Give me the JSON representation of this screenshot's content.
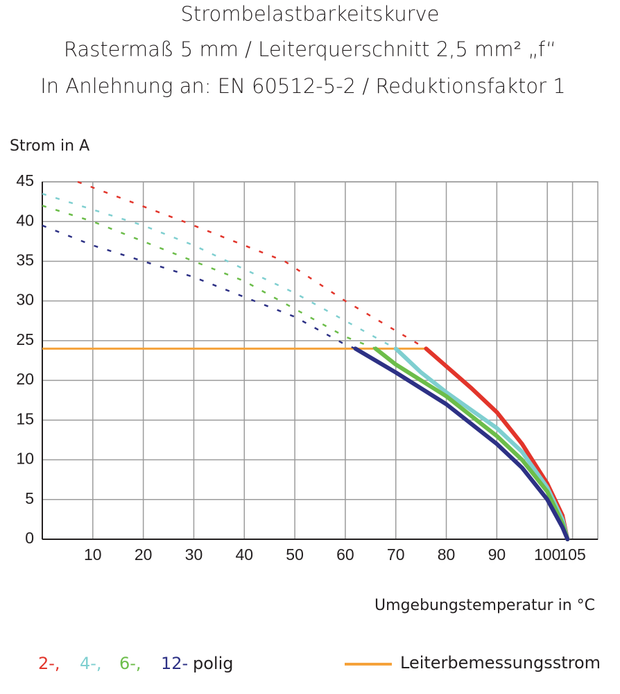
{
  "chart_data": {
    "type": "line",
    "title": "Strombelastbarkeitskurve",
    "subtitle": [
      "Rastermaß 5 mm / Leiterquerschnitt 2,5 mm² „f“",
      "In Anlehnung an: EN 60512-5-2 / Reduktionsfaktor 1"
    ],
    "y_label": "Strom in A",
    "x_label": "Umgebungstemperatur in °C",
    "legend_suffix": "polig",
    "xlim": [
      0,
      110
    ],
    "xticks": [
      10,
      20,
      30,
      40,
      50,
      60,
      70,
      80,
      90,
      100,
      105
    ],
    "ylim": [
      0,
      45
    ],
    "yticks": [
      0,
      5,
      10,
      15,
      20,
      25,
      30,
      35,
      40,
      45
    ],
    "grid": true,
    "series": [
      {
        "name": "2-,",
        "color": "#e2352b",
        "x": [
          7,
          28,
          48,
          60,
          76,
          85,
          90,
          95,
          100,
          103,
          104
        ],
        "values": [
          45,
          40,
          35,
          30,
          24,
          19,
          16,
          12,
          7,
          3,
          0
        ]
      },
      {
        "name": "4-,",
        "color": "#7fcfd0",
        "x": [
          0,
          10,
          20,
          30,
          40,
          50,
          60,
          70,
          75,
          80,
          90,
          95,
          100,
          103,
          104
        ],
        "values": [
          43.5,
          41.5,
          39.5,
          37,
          34,
          31,
          27.5,
          24,
          21,
          18.5,
          14,
          11,
          6.5,
          2.5,
          0
        ]
      },
      {
        "name": "6-,",
        "color": "#6cbd4a",
        "x": [
          0,
          10,
          20,
          30,
          40,
          50,
          60,
          66,
          70,
          80,
          90,
          95,
          100,
          103,
          104
        ],
        "values": [
          42,
          40,
          37.5,
          35,
          32.5,
          29,
          25.5,
          24,
          22,
          18,
          13,
          10,
          6,
          2,
          0
        ]
      },
      {
        "name": "12-",
        "color": "#2d3185",
        "x": [
          0,
          10,
          20,
          30,
          40,
          50,
          60,
          62,
          70,
          80,
          90,
          95,
          100,
          103,
          104
        ],
        "values": [
          39.5,
          37,
          35,
          33,
          30.5,
          28,
          24.5,
          24,
          21,
          17,
          12,
          9,
          5,
          1.5,
          0
        ]
      }
    ],
    "rated_current": {
      "name": "Leiterbemessungsstrom",
      "color": "#f5a23a",
      "x": [
        0,
        76
      ],
      "values": [
        24,
        24
      ]
    }
  }
}
